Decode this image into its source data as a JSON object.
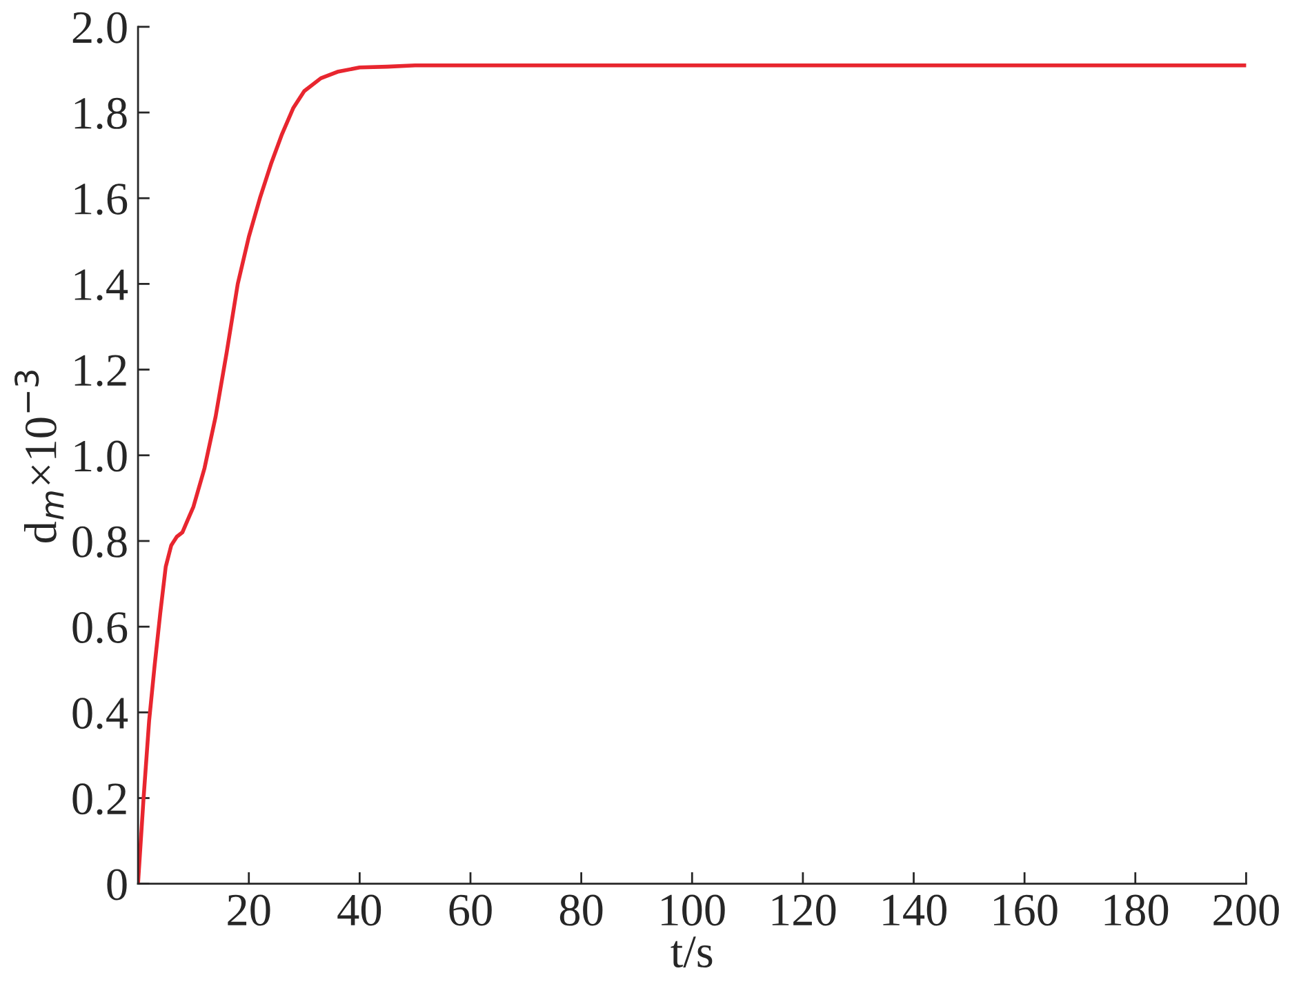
{
  "chart_data": {
    "type": "line",
    "xlabel": "t/s",
    "ylabel": "d$_{m}$×10$^{−3}$",
    "xlim": [
      0,
      200
    ],
    "ylim": [
      0,
      2.0
    ],
    "xticks": [
      20,
      40,
      60,
      80,
      100,
      120,
      140,
      160,
      180,
      200
    ],
    "yticks": [
      0,
      0.2,
      0.4,
      0.6,
      0.8,
      {
        "value": 1.0,
        "label": "1.0"
      },
      1.2,
      1.4,
      1.6,
      1.8,
      {
        "value": 2.0,
        "label": "2.0"
      }
    ],
    "grid": false,
    "legend": false,
    "marker": "none",
    "line_style": "solid",
    "series": [
      {
        "color": "#e8262f",
        "x": [
          0,
          1,
          2,
          3,
          4,
          5,
          6,
          7,
          8,
          9,
          10,
          12,
          14,
          16,
          18,
          20,
          22,
          24,
          26,
          28,
          30,
          33,
          36,
          40,
          45,
          50,
          100,
          150,
          200
        ],
        "values": [
          0,
          0.2,
          0.38,
          0.51,
          0.63,
          0.74,
          0.79,
          0.81,
          0.82,
          0.85,
          0.88,
          0.97,
          1.09,
          1.24,
          1.4,
          1.51,
          1.6,
          1.68,
          1.75,
          1.81,
          1.85,
          1.88,
          1.895,
          1.905,
          1.907,
          1.91,
          1.91,
          1.91,
          1.91
        ]
      }
    ]
  }
}
